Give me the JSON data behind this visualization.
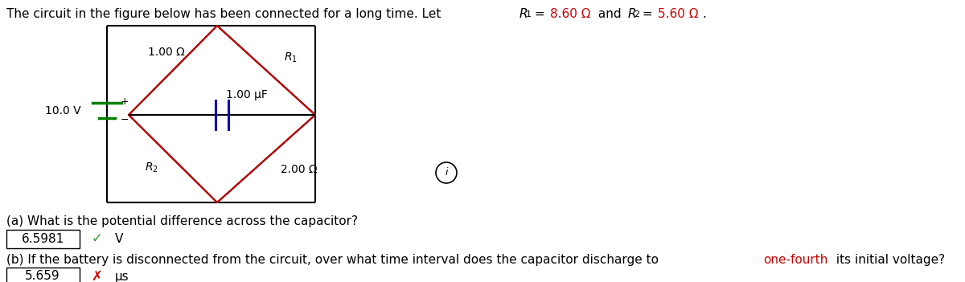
{
  "q_a_text": "(a) What is the potential difference across the capacitor?",
  "ans_a_val": "6.5981",
  "ans_a_unit": "V",
  "q_b_text_pre": "(b) If the battery is disconnected from the circuit, over what time interval does the capacitor discharge to ",
  "q_b_highlight": "one-fourth",
  "q_b_text_post": " its initial voltage?",
  "ans_b_val": "5.659",
  "ans_b_unit": "μs",
  "circuit_voltage": "10.0 V",
  "circuit_R1_top": "1.00 Ω",
  "circuit_cap": "1.00 μF",
  "circuit_R2_right": "2.00 Ω",
  "color_red": "#cc0000",
  "color_green": "#339933",
  "color_blue": "#0000bb",
  "color_resistor": "#cc0000",
  "color_battery": "#008000",
  "color_black": "#000000",
  "color_bg": "#ffffff",
  "title_fs": 11,
  "body_fs": 11,
  "circ_fs": 10
}
